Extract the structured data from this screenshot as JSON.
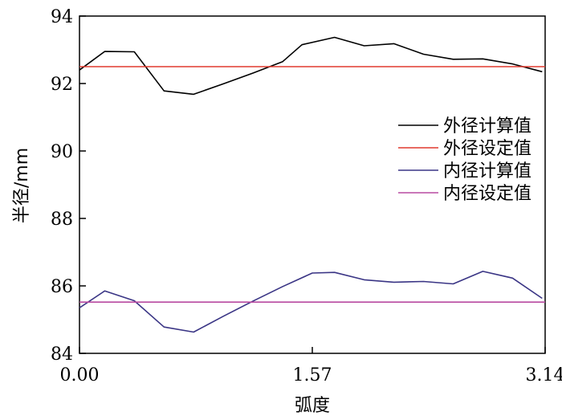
{
  "chart_data": {
    "type": "line",
    "xlabel": "弧度",
    "ylabel": "半径/mm",
    "xlim": [
      0,
      3.14
    ],
    "ylim": [
      84,
      94
    ],
    "x_ticks": [
      "0.00",
      "1.57",
      "3.14"
    ],
    "x_tick_values": [
      0,
      1.57,
      3.14
    ],
    "y_ticks": [
      "84",
      "86",
      "88",
      "90",
      "92",
      "94"
    ],
    "y_tick_values": [
      84,
      86,
      88,
      90,
      92,
      94
    ],
    "legend": {
      "position": "right"
    },
    "series": [
      {
        "name": "外径计算值",
        "color": "#000000",
        "x": [
          0.0,
          0.17,
          0.37,
          0.57,
          0.77,
          0.97,
          1.17,
          1.37,
          1.5,
          1.72,
          1.92,
          2.12,
          2.32,
          2.52,
          2.72,
          2.92,
          3.12
        ],
        "values": [
          92.4,
          92.95,
          92.94,
          91.78,
          91.68,
          91.99,
          92.31,
          92.65,
          93.15,
          93.37,
          93.12,
          93.18,
          92.87,
          92.72,
          92.73,
          92.58,
          92.35
        ]
      },
      {
        "name": "外径设定值",
        "color": "#e03a2f",
        "x": [
          0.0,
          3.14
        ],
        "values": [
          92.5,
          92.5
        ]
      },
      {
        "name": "内径计算值",
        "color": "#3a3585",
        "x": [
          0.0,
          0.17,
          0.37,
          0.57,
          0.77,
          0.97,
          1.17,
          1.37,
          1.57,
          1.72,
          1.92,
          2.12,
          2.32,
          2.52,
          2.72,
          2.92,
          3.12
        ],
        "values": [
          85.35,
          85.85,
          85.56,
          84.78,
          84.63,
          85.1,
          85.55,
          85.98,
          86.38,
          86.4,
          86.18,
          86.11,
          86.13,
          86.06,
          86.43,
          86.23,
          85.63
        ]
      },
      {
        "name": "内径设定值",
        "color": "#b84aa0",
        "x": [
          0.0,
          3.14
        ],
        "values": [
          85.52,
          85.52
        ]
      }
    ]
  }
}
